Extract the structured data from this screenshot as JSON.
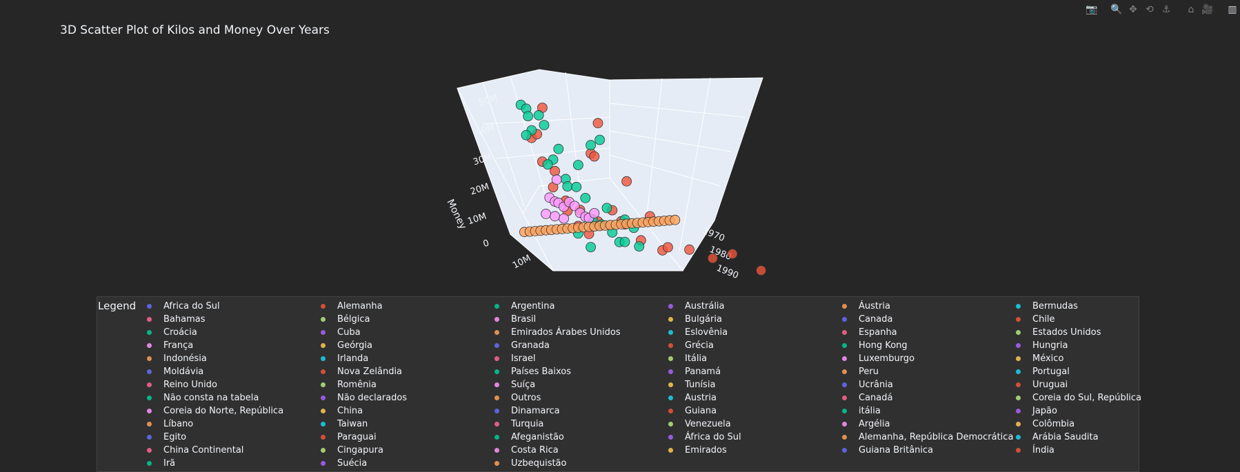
{
  "modebar": {
    "buttons": [
      {
        "name": "camera-icon",
        "glyph": "📷"
      },
      {
        "name": "zoom-icon",
        "glyph": "🔍"
      },
      {
        "name": "pan-icon",
        "glyph": "✥"
      },
      {
        "name": "orbit-rotation-icon",
        "glyph": "⟲"
      },
      {
        "name": "turntable-rotation-icon",
        "glyph": "⚓"
      },
      {
        "name": "reset-camera-icon",
        "glyph": "⌂"
      },
      {
        "name": "save-view-icon",
        "glyph": "🎥"
      },
      {
        "name": "plotly-logo-icon",
        "glyph": "▥"
      }
    ]
  },
  "chart_data": {
    "type": "scatter",
    "dimensions": 3,
    "title": "3D Scatter Plot of Kilos and Money Over Years",
    "axes": {
      "money": {
        "label": "Money",
        "ticks": [
          "0",
          "10M",
          "20M",
          "30M",
          "40M",
          "50M"
        ],
        "range": [
          0,
          52000000
        ]
      },
      "kilos": {
        "label": "",
        "ticks": [
          "10M"
        ]
      },
      "year": {
        "label": "",
        "ticks": [
          "1970",
          "1980",
          "1990"
        ]
      }
    },
    "legend": {
      "title": "Legend",
      "placement": "bottom",
      "colors": [
        "#636efa",
        "#EF553B",
        "#00cc96",
        "#ab63fa",
        "#FFA15A",
        "#19d3f3",
        "#FF6692",
        "#B6E880",
        "#FF97FF",
        "#FECB52"
      ],
      "entries": [
        "Africa do Sul",
        "Alemanha",
        "Argentina",
        "Austrália",
        "Áustria",
        "Bermudas",
        "Bahamas",
        "Bélgica",
        "Brasil",
        "Bulgária",
        "Canada",
        "Chile",
        "Croácia",
        "Cuba",
        "Emirados Árabes Unidos",
        "Eslovênia",
        "Espanha",
        "Estados Unidos",
        "França",
        "Geórgia",
        "Granada",
        "Grécia",
        "Hong Kong",
        "Hungria",
        "Indonésia",
        "Irlanda",
        "Israel",
        "Itália",
        "Luxemburgo",
        "México",
        "Moldávia",
        "Nova Zelândia",
        "Países Baixos",
        "Panamá",
        "Peru",
        "Portugal",
        "Reino Unido",
        "Romênia",
        "Suíça",
        "Tunísia",
        "Ucrânia",
        "Uruguai",
        "Não consta na tabela",
        "Não declarados",
        "Outros",
        "Austria",
        "Canadá",
        "Coreia do Sul, República",
        "Coreia do Norte, República",
        "China",
        "Dinamarca",
        "Guiana",
        "itália",
        "Japão",
        "Líbano",
        "Taiwan",
        "Turquia",
        "Venezuela",
        "Argélia",
        "Colômbia",
        "Egito",
        "Paraguai",
        "Afeganistão",
        "África do Sul",
        "Alemanha, República Democrática",
        "Arábia Saudita",
        "China Continental",
        "Cingapura",
        "Costa Rica",
        "Emirados",
        "Guiana Britânica",
        "Índia",
        "Irã",
        "Suécia",
        "Uzbequistão"
      ]
    },
    "series": [
      {
        "name": "Alemanha",
        "color": "#EF553B",
        "points": [
          [
            4,
            33,
            0
          ],
          [
            4,
            37,
            3
          ],
          [
            6,
            44,
            2
          ],
          [
            5,
            28,
            4
          ],
          [
            7,
            20,
            6
          ],
          [
            8,
            24,
            5
          ],
          [
            10,
            12,
            8
          ],
          [
            11,
            10,
            12
          ],
          [
            13,
            8,
            14
          ],
          [
            9,
            17,
            9
          ],
          [
            12,
            14,
            11
          ],
          [
            15,
            12,
            15
          ],
          [
            14,
            34,
            13
          ],
          [
            16,
            30,
            11
          ],
          [
            18,
            16,
            17
          ],
          [
            20,
            12,
            18
          ],
          [
            22,
            8,
            16
          ],
          [
            24,
            6,
            21
          ],
          [
            28,
            4,
            25
          ],
          [
            30,
            3,
            24
          ],
          [
            26,
            14,
            22
          ],
          [
            21,
            26,
            19
          ],
          [
            19,
            36,
            7
          ],
          [
            33,
            6,
            30
          ],
          [
            38,
            3,
            33
          ],
          [
            42,
            5,
            36
          ],
          [
            47,
            2,
            42
          ]
        ]
      },
      {
        "name": "Argentina",
        "color": "#00cc96",
        "points": [
          [
            1,
            46,
            0
          ],
          [
            2,
            45,
            1
          ],
          [
            3,
            41,
            0
          ],
          [
            3,
            38,
            2
          ],
          [
            2,
            36,
            1
          ],
          [
            5,
            42,
            2
          ],
          [
            6,
            39,
            3
          ],
          [
            8,
            27,
            4
          ],
          [
            9,
            31,
            5
          ],
          [
            7,
            25,
            3
          ],
          [
            10,
            22,
            7
          ],
          [
            11,
            18,
            6
          ],
          [
            12,
            20,
            9
          ],
          [
            13,
            26,
            8
          ],
          [
            14,
            16,
            10
          ],
          [
            15,
            10,
            12
          ],
          [
            17,
            8,
            13
          ],
          [
            12,
            5,
            10
          ],
          [
            19,
            6,
            15
          ],
          [
            20,
            4,
            17
          ],
          [
            22,
            2,
            16
          ],
          [
            18,
            14,
            14
          ],
          [
            21,
            12,
            18
          ],
          [
            23,
            9,
            19
          ],
          [
            16,
            32,
            9
          ],
          [
            17,
            36,
            12
          ],
          [
            24,
            3,
            20
          ],
          [
            14,
            2,
            13
          ]
        ]
      },
      {
        "name": "Brasil",
        "color": "#FF97FF",
        "points": [
          [
            6,
            17,
            6
          ],
          [
            7,
            16,
            7
          ],
          [
            8,
            15,
            7
          ],
          [
            9,
            14,
            8
          ],
          [
            10,
            16,
            9
          ],
          [
            11,
            15,
            10
          ],
          [
            12,
            13,
            11
          ],
          [
            13,
            12,
            12
          ],
          [
            14,
            11,
            12
          ],
          [
            15,
            13,
            13
          ],
          [
            5,
            12,
            6
          ],
          [
            7,
            11,
            7
          ],
          [
            9,
            10,
            8
          ],
          [
            8,
            22,
            6
          ]
        ]
      },
      {
        "name": "Uzbequistão",
        "color": "#FFA15A",
        "points": [
          [
            2,
            2,
            0
          ],
          [
            3,
            2.5,
            1
          ],
          [
            4,
            3,
            2
          ],
          [
            5,
            3.5,
            3
          ],
          [
            6,
            4,
            4
          ],
          [
            7,
            4.5,
            5
          ],
          [
            8,
            5,
            6
          ],
          [
            9,
            5.5,
            7
          ],
          [
            10,
            6,
            8
          ],
          [
            11,
            6.5,
            9
          ],
          [
            12,
            7,
            10
          ],
          [
            13,
            7.5,
            11
          ],
          [
            14,
            8,
            12
          ],
          [
            15,
            8.5,
            13
          ],
          [
            16,
            9,
            14
          ],
          [
            17,
            9.5,
            15
          ],
          [
            18,
            10,
            16
          ],
          [
            19,
            10.5,
            17
          ],
          [
            20,
            11,
            18
          ],
          [
            21,
            11.5,
            19
          ],
          [
            22,
            12,
            20
          ],
          [
            23,
            12.5,
            21
          ],
          [
            24,
            13,
            22
          ],
          [
            25,
            13.5,
            23
          ],
          [
            26,
            14,
            24
          ],
          [
            27,
            14.5,
            25
          ],
          [
            28,
            15,
            26
          ],
          [
            29,
            15.5,
            27
          ],
          [
            30,
            16,
            28
          ]
        ]
      }
    ]
  }
}
